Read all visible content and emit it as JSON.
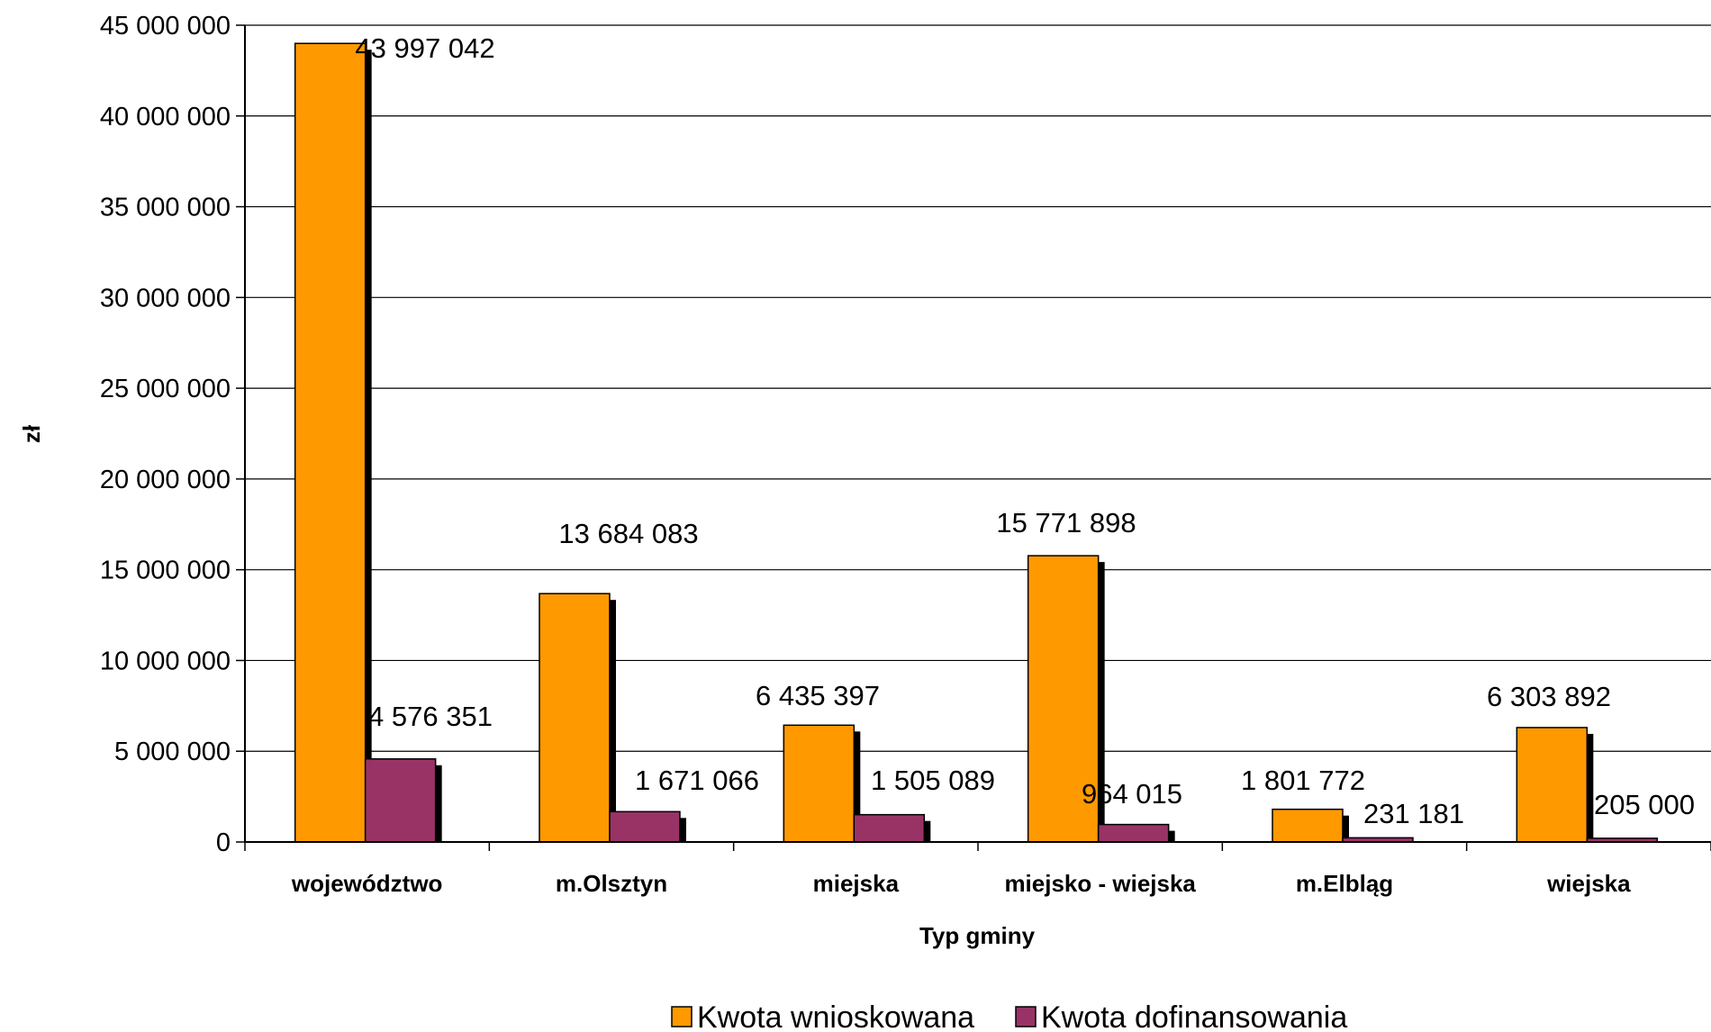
{
  "chart_data": {
    "type": "bar",
    "title": "",
    "xlabel": "Typ gminy",
    "ylabel": "zł",
    "ylim": [
      0,
      45000000
    ],
    "ytick_step": 5000000,
    "ytick_labels": [
      "0",
      "5 000 000",
      "10 000 000",
      "15 000 000",
      "20 000 000",
      "25 000 000",
      "30 000 000",
      "35 000 000",
      "40 000 000",
      "45 000 000"
    ],
    "grid": true,
    "legend_position": "bottom",
    "categories": [
      "województwo",
      "m.Olsztyn",
      "miejska",
      "miejsko - wiejska",
      "m.Elbląg",
      "wiejska"
    ],
    "series": [
      {
        "name": "Kwota wnioskowana",
        "color": "#ff9900",
        "values": [
          43997042,
          13684083,
          6435397,
          15771898,
          1801772,
          6303892
        ],
        "labels": [
          "43 997 042",
          "13 684 083",
          "6 435 397",
          "15 771 898",
          "1 801 772",
          "6 303 892"
        ]
      },
      {
        "name": "Kwota dofinansowania",
        "color": "#993366",
        "values": [
          4576351,
          1671066,
          1505089,
          964015,
          231181,
          205000
        ],
        "labels": [
          "4 576 351",
          "1 671 066",
          "1 505 089",
          "964 015",
          "231 181",
          "205 000"
        ]
      }
    ]
  }
}
